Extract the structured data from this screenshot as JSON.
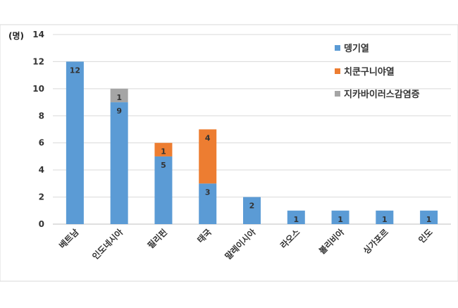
{
  "chart_data": {
    "type": "bar",
    "stacked": true,
    "unit_label": "(명)",
    "title": "",
    "xlabel": "",
    "ylabel": "",
    "ylim": [
      0,
      14
    ],
    "yticks": [
      0,
      2,
      4,
      6,
      8,
      10,
      12,
      14
    ],
    "grid": true,
    "legend_position": "top-right",
    "categories": [
      "베트남",
      "인도네시아",
      "필리핀",
      "태국",
      "말레이시아",
      "라오스",
      "볼리비아",
      "싱가포르",
      "인도"
    ],
    "series": [
      {
        "name": "뎅기열",
        "color": "#5b9bd5",
        "values": [
          12,
          9,
          5,
          3,
          2,
          1,
          1,
          1,
          1
        ]
      },
      {
        "name": "치쿤구니야열",
        "color": "#ed7d31",
        "values": [
          0,
          0,
          1,
          4,
          0,
          0,
          0,
          0,
          0
        ]
      },
      {
        "name": "지카바이러스감염증",
        "color": "#a5a5a5",
        "values": [
          0,
          1,
          0,
          0,
          0,
          0,
          0,
          0,
          0
        ]
      }
    ]
  }
}
